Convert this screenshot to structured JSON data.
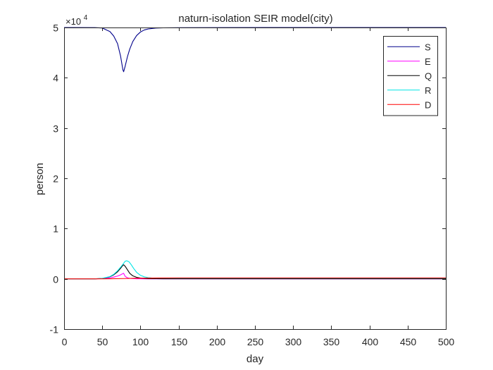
{
  "chart_data": {
    "type": "line",
    "title": "naturn-isolation SEIR model(city)",
    "xlabel": "day",
    "ylabel": "person",
    "xlim": [
      0,
      500
    ],
    "ylim": [
      -10000,
      50000
    ],
    "y_exponent_label": "×10",
    "y_exponent_power": "4",
    "xticks": [
      0,
      50,
      100,
      150,
      200,
      250,
      300,
      350,
      400,
      450,
      500
    ],
    "yticks": [
      -1,
      0,
      1,
      2,
      3,
      4,
      5
    ],
    "grid": false,
    "legend_position": "top-right",
    "series": [
      {
        "name": "S",
        "color": "#00008b",
        "x": [
          0,
          40,
          50,
          60,
          65,
          70,
          74,
          77,
          78,
          80,
          83,
          86,
          90,
          95,
          100,
          105,
          110,
          115,
          120,
          130,
          150,
          200,
          300,
          400,
          500
        ],
        "y": [
          50000,
          49980,
          49900,
          49200,
          48300,
          46800,
          44300,
          41600,
          41200,
          42300,
          44200,
          45700,
          47200,
          48400,
          49100,
          49500,
          49700,
          49800,
          49880,
          49930,
          49960,
          49980,
          49990,
          49995,
          50000
        ]
      },
      {
        "name": "E",
        "color": "#ff00ff",
        "x": [
          0,
          40,
          50,
          60,
          65,
          70,
          74,
          77,
          78,
          80,
          83,
          86,
          90,
          95,
          100,
          110,
          130,
          200,
          500
        ],
        "y": [
          0,
          0,
          50,
          200,
          350,
          550,
          800,
          1050,
          1100,
          500,
          200,
          100,
          50,
          20,
          10,
          0,
          0,
          0,
          0
        ]
      },
      {
        "name": "Q",
        "color": "#000000",
        "x": [
          0,
          40,
          50,
          60,
          65,
          70,
          74,
          77,
          78,
          80,
          83,
          86,
          90,
          95,
          100,
          105,
          110,
          120,
          130,
          200,
          500
        ],
        "y": [
          0,
          0,
          80,
          400,
          800,
          1400,
          2100,
          2700,
          2800,
          2500,
          1800,
          1100,
          600,
          300,
          150,
          80,
          50,
          30,
          20,
          20,
          20
        ]
      },
      {
        "name": "R",
        "color": "#00e5e5",
        "x": [
          0,
          40,
          50,
          60,
          65,
          70,
          75,
          78,
          80,
          82,
          85,
          88,
          91,
          95,
          100,
          105,
          110,
          115,
          120,
          130,
          150,
          200,
          500
        ],
        "y": [
          0,
          0,
          80,
          450,
          900,
          1600,
          2500,
          3100,
          3500,
          3600,
          3400,
          2800,
          2100,
          1300,
          700,
          400,
          250,
          180,
          150,
          150,
          150,
          150,
          150
        ]
      },
      {
        "name": "D",
        "color": "#ff0000",
        "x": [
          0,
          40,
          60,
          78,
          90,
          110,
          150,
          200,
          300,
          500
        ],
        "y": [
          0,
          0,
          20,
          60,
          100,
          150,
          200,
          200,
          200,
          200
        ]
      }
    ]
  }
}
